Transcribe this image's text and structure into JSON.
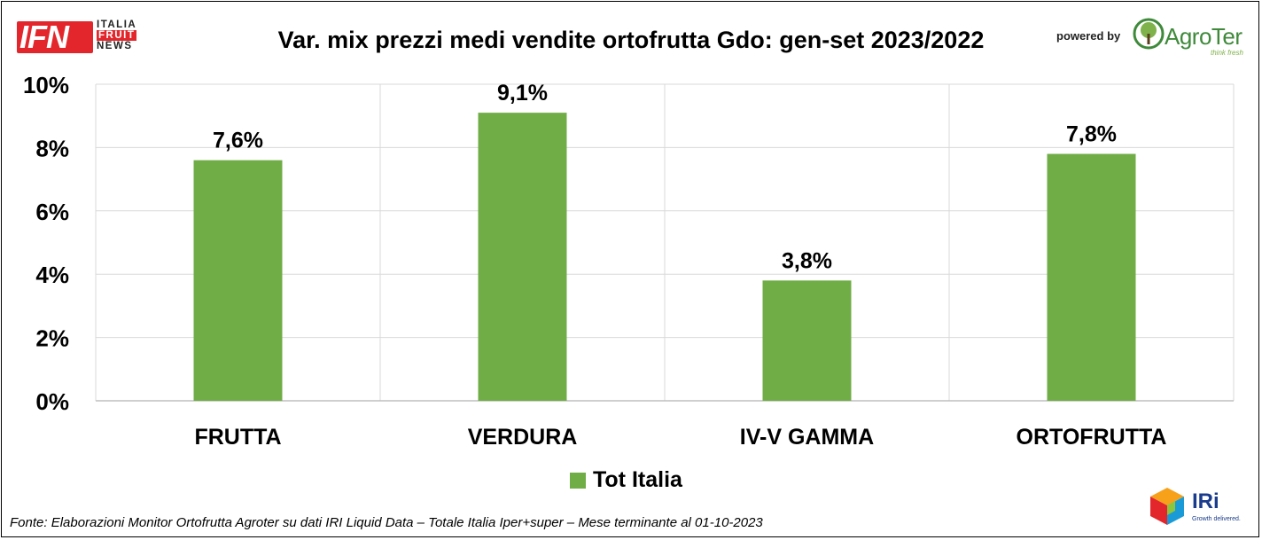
{
  "logo_left": {
    "letters": "IFN",
    "word1": "ITALIA",
    "word2": "FRUIT",
    "word3": "NEWS"
  },
  "powered_by": "powered by",
  "logo_right": {
    "name": "AgroTer",
    "tagline": "think fresh"
  },
  "logo_bottom": {
    "name": "IRi",
    "tagline": "Growth delivered."
  },
  "source": "Fonte: Elaborazioni Monitor Ortofrutta Agroter su dati IRI Liquid Data – Totale Italia Iper+super – Mese terminante al 01-10-2023",
  "colors": {
    "bar": "#70ad47",
    "grid": "#d9d9d9",
    "ifn_red": "#e3262b"
  },
  "chart_data": {
    "type": "bar",
    "title": "Var. mix prezzi medi vendite ortofrutta Gdo: gen-set 2023/2022",
    "categories": [
      "FRUTTA",
      "VERDURA",
      "IV-V GAMMA",
      "ORTOFRUTTA"
    ],
    "series": [
      {
        "name": "Tot Italia",
        "values": [
          7.6,
          9.1,
          3.8,
          7.8
        ],
        "labels": [
          "7,6%",
          "9,1%",
          "3,8%",
          "7,8%"
        ]
      }
    ],
    "ylim": [
      0,
      10
    ],
    "yticks": [
      0,
      2,
      4,
      6,
      8,
      10
    ],
    "ytick_labels": [
      "0%",
      "2%",
      "4%",
      "6%",
      "8%",
      "10%"
    ],
    "xlabel": "",
    "ylabel": "",
    "grid": true,
    "legend_position": "bottom"
  }
}
